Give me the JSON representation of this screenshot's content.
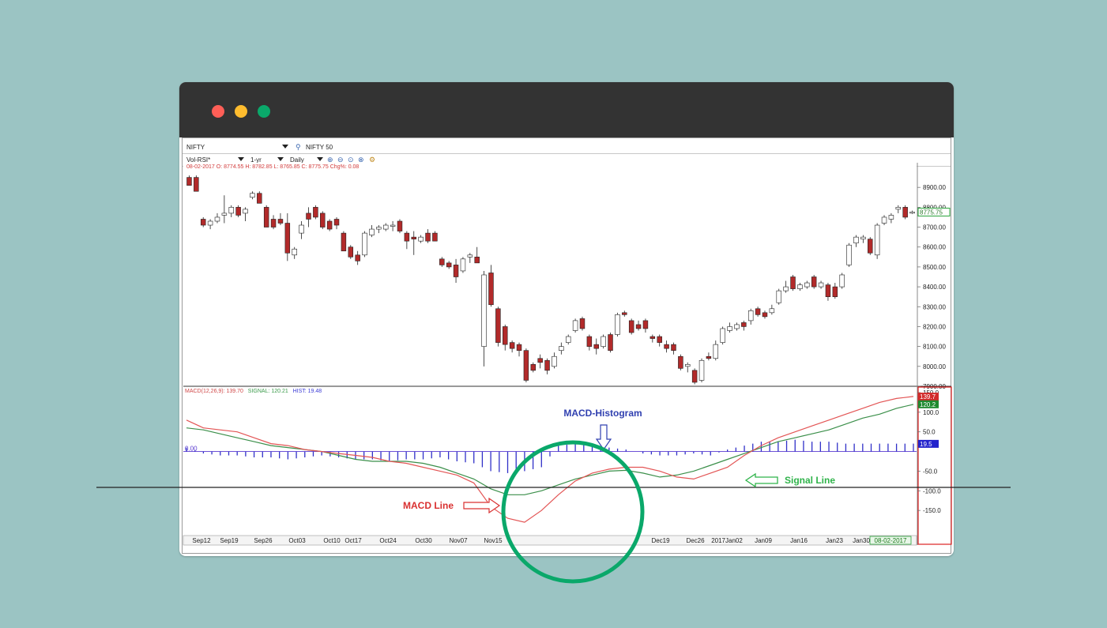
{
  "window": {
    "controls": [
      "close",
      "minimize",
      "maximize"
    ]
  },
  "toolbar": {
    "symbol": "NIFTY",
    "index_name": "NIFTY 50",
    "template": "Vol-RSI*",
    "range": "1-yr",
    "interval": "Daily",
    "icons": [
      "search-icon",
      "zoom-in-icon",
      "zoom-out-icon",
      "zoom-fit-icon",
      "zoom-reset-icon",
      "settings-icon"
    ]
  },
  "price_info": "08-02-2017  O: 8774.55  H: 8782.85  L: 8765.85  C: 8775.75  Chg%: 0.08",
  "macd_info": {
    "macd": "MACD(12,26,9):  139.70",
    "signal": "SIGNAL: 120.21",
    "hist": "HIST: 19.48"
  },
  "colors": {
    "up_candle": "#ffffff",
    "down_candle": "#b22a2a",
    "macd_line": "#e35555",
    "signal_line": "#3b8f4a",
    "histogram": "#3030c8",
    "annotation_macd": "#d93030",
    "annotation_hist": "#3040b0",
    "annotation_signal": "#2fb34a",
    "highlight_circle": "#0aa86a"
  },
  "annotations": {
    "histogram": "MACD-Histogram",
    "macd_line": "MACD Line",
    "signal_line": "Signal Line"
  },
  "chart_data": [
    {
      "type": "candlestick",
      "title": "NIFTY",
      "y_ticks": [
        "8900.00",
        "8800.00",
        "8700.00",
        "8600.00",
        "8500.00",
        "8400.00",
        "8300.00",
        "8200.00",
        "8100.00",
        "8000.00",
        "7900.00"
      ],
      "ylim": [
        7900,
        9000
      ],
      "last_price": "8775.75",
      "x_ticks": [
        "Sep12",
        "Sep19",
        "Sep26",
        "Oct03",
        "Oct10",
        "Oct17",
        "Oct24",
        "Oct30",
        "Nov07",
        "Nov15",
        "Dec19",
        "Dec26",
        "2017Jan02",
        "Jan09",
        "Jan16",
        "Jan23",
        "Jan30",
        "08-02-2017"
      ],
      "candles": [
        {
          "o": 8950,
          "h": 8960,
          "l": 8910,
          "c": 8910
        },
        {
          "o": 8950,
          "h": 8960,
          "l": 8880,
          "c": 8880
        },
        {
          "o": 8740,
          "h": 8750,
          "l": 8700,
          "c": 8710
        },
        {
          "o": 8710,
          "h": 8740,
          "l": 8690,
          "c": 8730
        },
        {
          "o": 8730,
          "h": 8770,
          "l": 8720,
          "c": 8750
        },
        {
          "o": 8760,
          "h": 8860,
          "l": 8720,
          "c": 8770
        },
        {
          "o": 8770,
          "h": 8810,
          "l": 8750,
          "c": 8800
        },
        {
          "o": 8800,
          "h": 8810,
          "l": 8750,
          "c": 8760
        },
        {
          "o": 8770,
          "h": 8800,
          "l": 8730,
          "c": 8790
        },
        {
          "o": 8850,
          "h": 8880,
          "l": 8840,
          "c": 8870
        },
        {
          "o": 8870,
          "h": 8880,
          "l": 8820,
          "c": 8820
        },
        {
          "o": 8800,
          "h": 8810,
          "l": 8700,
          "c": 8700
        },
        {
          "o": 8740,
          "h": 8760,
          "l": 8690,
          "c": 8700
        },
        {
          "o": 8740,
          "h": 8770,
          "l": 8710,
          "c": 8720
        },
        {
          "o": 8720,
          "h": 8770,
          "l": 8530,
          "c": 8570
        },
        {
          "o": 8560,
          "h": 8600,
          "l": 8540,
          "c": 8590
        },
        {
          "o": 8670,
          "h": 8730,
          "l": 8640,
          "c": 8710
        },
        {
          "o": 8770,
          "h": 8800,
          "l": 8700,
          "c": 8740
        },
        {
          "o": 8800,
          "h": 8810,
          "l": 8740,
          "c": 8750
        },
        {
          "o": 8770,
          "h": 8780,
          "l": 8690,
          "c": 8700
        },
        {
          "o": 8730,
          "h": 8740,
          "l": 8680,
          "c": 8690
        },
        {
          "o": 8740,
          "h": 8750,
          "l": 8690,
          "c": 8710
        },
        {
          "o": 8670,
          "h": 8680,
          "l": 8580,
          "c": 8580
        },
        {
          "o": 8600,
          "h": 8610,
          "l": 8540,
          "c": 8550
        },
        {
          "o": 8560,
          "h": 8580,
          "l": 8510,
          "c": 8530
        },
        {
          "o": 8560,
          "h": 8680,
          "l": 8550,
          "c": 8670
        },
        {
          "o": 8660,
          "h": 8710,
          "l": 8650,
          "c": 8690
        },
        {
          "o": 8690,
          "h": 8710,
          "l": 8670,
          "c": 8700
        },
        {
          "o": 8690,
          "h": 8720,
          "l": 8680,
          "c": 8710
        },
        {
          "o": 8710,
          "h": 8730,
          "l": 8680,
          "c": 8710
        },
        {
          "o": 8730,
          "h": 8740,
          "l": 8670,
          "c": 8680
        },
        {
          "o": 8670,
          "h": 8680,
          "l": 8590,
          "c": 8630
        },
        {
          "o": 8650,
          "h": 8680,
          "l": 8560,
          "c": 8640
        },
        {
          "o": 8630,
          "h": 8660,
          "l": 8620,
          "c": 8650
        },
        {
          "o": 8670,
          "h": 8690,
          "l": 8620,
          "c": 8630
        },
        {
          "o": 8670,
          "h": 8680,
          "l": 8630,
          "c": 8630
        },
        {
          "o": 8540,
          "h": 8550,
          "l": 8500,
          "c": 8510
        },
        {
          "o": 8520,
          "h": 8530,
          "l": 8490,
          "c": 8500
        },
        {
          "o": 8510,
          "h": 8540,
          "l": 8420,
          "c": 8450
        },
        {
          "o": 8480,
          "h": 8550,
          "l": 8470,
          "c": 8540
        },
        {
          "o": 8550,
          "h": 8570,
          "l": 8520,
          "c": 8560
        },
        {
          "o": 8550,
          "h": 8600,
          "l": 8520,
          "c": 8520
        },
        {
          "o": 8100,
          "h": 8480,
          "l": 8000,
          "c": 8460
        },
        {
          "o": 8470,
          "h": 8510,
          "l": 8300,
          "c": 8310
        },
        {
          "o": 8290,
          "h": 8300,
          "l": 8100,
          "c": 8120
        },
        {
          "o": 8200,
          "h": 8210,
          "l": 8080,
          "c": 8110
        },
        {
          "o": 8120,
          "h": 8130,
          "l": 8070,
          "c": 8090
        },
        {
          "o": 8110,
          "h": 8120,
          "l": 8050,
          "c": 8080
        },
        {
          "o": 8080,
          "h": 8090,
          "l": 7920,
          "c": 7930
        },
        {
          "o": 8010,
          "h": 8020,
          "l": 7970,
          "c": 7980
        },
        {
          "o": 8040,
          "h": 8060,
          "l": 7990,
          "c": 8020
        },
        {
          "o": 8030,
          "h": 8040,
          "l": 7960,
          "c": 7980
        },
        {
          "o": 8000,
          "h": 8070,
          "l": 7990,
          "c": 8050
        },
        {
          "o": 8080,
          "h": 8120,
          "l": 8060,
          "c": 8100
        },
        {
          "o": 8120,
          "h": 8160,
          "l": 8110,
          "c": 8150
        },
        {
          "o": 8180,
          "h": 8240,
          "l": 8170,
          "c": 8230
        },
        {
          "o": 8240,
          "h": 8250,
          "l": 8180,
          "c": 8190
        },
        {
          "o": 8150,
          "h": 8160,
          "l": 8080,
          "c": 8100
        },
        {
          "o": 8110,
          "h": 8140,
          "l": 8060,
          "c": 8090
        },
        {
          "o": 8100,
          "h": 8160,
          "l": 8090,
          "c": 8150
        },
        {
          "o": 8160,
          "h": 8170,
          "l": 8070,
          "c": 8080
        },
        {
          "o": 8160,
          "h": 8270,
          "l": 8150,
          "c": 8260
        },
        {
          "o": 8270,
          "h": 8280,
          "l": 8250,
          "c": 8260
        },
        {
          "o": 8230,
          "h": 8240,
          "l": 8160,
          "c": 8170
        },
        {
          "o": 8210,
          "h": 8230,
          "l": 8180,
          "c": 8190
        },
        {
          "o": 8230,
          "h": 8240,
          "l": 8170,
          "c": 8190
        },
        {
          "o": 8150,
          "h": 8160,
          "l": 8120,
          "c": 8140
        },
        {
          "o": 8150,
          "h": 8160,
          "l": 8100,
          "c": 8120
        },
        {
          "o": 8110,
          "h": 8130,
          "l": 8070,
          "c": 8090
        },
        {
          "o": 8110,
          "h": 8120,
          "l": 8060,
          "c": 8080
        },
        {
          "o": 8050,
          "h": 8060,
          "l": 7980,
          "c": 7990
        },
        {
          "o": 8000,
          "h": 8020,
          "l": 7970,
          "c": 8010
        },
        {
          "o": 7980,
          "h": 7990,
          "l": 7910,
          "c": 7920
        },
        {
          "o": 7930,
          "h": 8040,
          "l": 7920,
          "c": 8030
        },
        {
          "o": 8050,
          "h": 8070,
          "l": 8030,
          "c": 8040
        },
        {
          "o": 8040,
          "h": 8130,
          "l": 8030,
          "c": 8110
        },
        {
          "o": 8120,
          "h": 8200,
          "l": 8110,
          "c": 8190
        },
        {
          "o": 8180,
          "h": 8220,
          "l": 8170,
          "c": 8200
        },
        {
          "o": 8190,
          "h": 8220,
          "l": 8180,
          "c": 8210
        },
        {
          "o": 8220,
          "h": 8230,
          "l": 8180,
          "c": 8200
        },
        {
          "o": 8230,
          "h": 8290,
          "l": 8210,
          "c": 8280
        },
        {
          "o": 8290,
          "h": 8300,
          "l": 8250,
          "c": 8260
        },
        {
          "o": 8270,
          "h": 8280,
          "l": 8240,
          "c": 8250
        },
        {
          "o": 8270,
          "h": 8310,
          "l": 8260,
          "c": 8290
        },
        {
          "o": 8320,
          "h": 8390,
          "l": 8310,
          "c": 8380
        },
        {
          "o": 8380,
          "h": 8430,
          "l": 8370,
          "c": 8400
        },
        {
          "o": 8450,
          "h": 8460,
          "l": 8380,
          "c": 8390
        },
        {
          "o": 8390,
          "h": 8420,
          "l": 8380,
          "c": 8410
        },
        {
          "o": 8400,
          "h": 8430,
          "l": 8390,
          "c": 8420
        },
        {
          "o": 8450,
          "h": 8460,
          "l": 8390,
          "c": 8400
        },
        {
          "o": 8400,
          "h": 8430,
          "l": 8390,
          "c": 8420
        },
        {
          "o": 8410,
          "h": 8420,
          "l": 8330,
          "c": 8350
        },
        {
          "o": 8400,
          "h": 8420,
          "l": 8340,
          "c": 8350
        },
        {
          "o": 8400,
          "h": 8470,
          "l": 8390,
          "c": 8460
        },
        {
          "o": 8510,
          "h": 8620,
          "l": 8500,
          "c": 8610
        },
        {
          "o": 8620,
          "h": 8660,
          "l": 8600,
          "c": 8650
        },
        {
          "o": 8640,
          "h": 8660,
          "l": 8620,
          "c": 8650
        },
        {
          "o": 8640,
          "h": 8650,
          "l": 8560,
          "c": 8570
        },
        {
          "o": 8560,
          "h": 8720,
          "l": 8540,
          "c": 8710
        },
        {
          "o": 8720,
          "h": 8760,
          "l": 8710,
          "c": 8750
        },
        {
          "o": 8740,
          "h": 8770,
          "l": 8720,
          "c": 8760
        },
        {
          "o": 8790,
          "h": 8810,
          "l": 8770,
          "c": 8800
        },
        {
          "o": 8800,
          "h": 8810,
          "l": 8740,
          "c": 8750
        },
        {
          "o": 8775,
          "h": 8783,
          "l": 8766,
          "c": 8776
        }
      ]
    },
    {
      "type": "line",
      "title": "MACD(12,26,9)",
      "y_ticks": [
        "150.0",
        "100.0",
        "50.0",
        "0.00",
        "-50.0",
        "-100.0",
        "-150.0"
      ],
      "ylim": [
        -210,
        160
      ],
      "last_values": {
        "macd": "139.7",
        "signal": "120.2",
        "hist": "19.5"
      },
      "series": [
        {
          "name": "MACD",
          "values": [
            80,
            60,
            55,
            50,
            35,
            20,
            15,
            5,
            0,
            -5,
            -10,
            -15,
            -25,
            -30,
            -40,
            -50,
            -60,
            -80,
            -140,
            -170,
            -180,
            -150,
            -110,
            -75,
            -55,
            -45,
            -40,
            -40,
            -50,
            -65,
            -70,
            -55,
            -40,
            -10,
            15,
            35,
            50,
            65,
            80,
            95,
            110,
            125,
            135,
            140
          ]
        },
        {
          "name": "SIGNAL",
          "values": [
            60,
            55,
            45,
            35,
            25,
            15,
            10,
            5,
            0,
            -10,
            -20,
            -25,
            -25,
            -25,
            -30,
            -40,
            -55,
            -70,
            -95,
            -110,
            -110,
            -100,
            -85,
            -70,
            -60,
            -50,
            -48,
            -55,
            -65,
            -60,
            -50,
            -35,
            -20,
            -5,
            10,
            25,
            35,
            45,
            55,
            70,
            85,
            95,
            110,
            120
          ]
        },
        {
          "name": "HIST",
          "values": [
            10,
            -5,
            -10,
            -10,
            -15,
            -15,
            -20,
            -15,
            -10,
            -15,
            -20,
            -20,
            -25,
            -20,
            -20,
            -15,
            -25,
            -30,
            -50,
            -55,
            -50,
            -40,
            15,
            20,
            15,
            10,
            5,
            -5,
            -10,
            -10,
            -5,
            -10,
            5,
            15,
            25,
            25,
            30,
            25,
            25,
            20,
            20,
            20,
            20,
            20
          ]
        }
      ]
    }
  ]
}
